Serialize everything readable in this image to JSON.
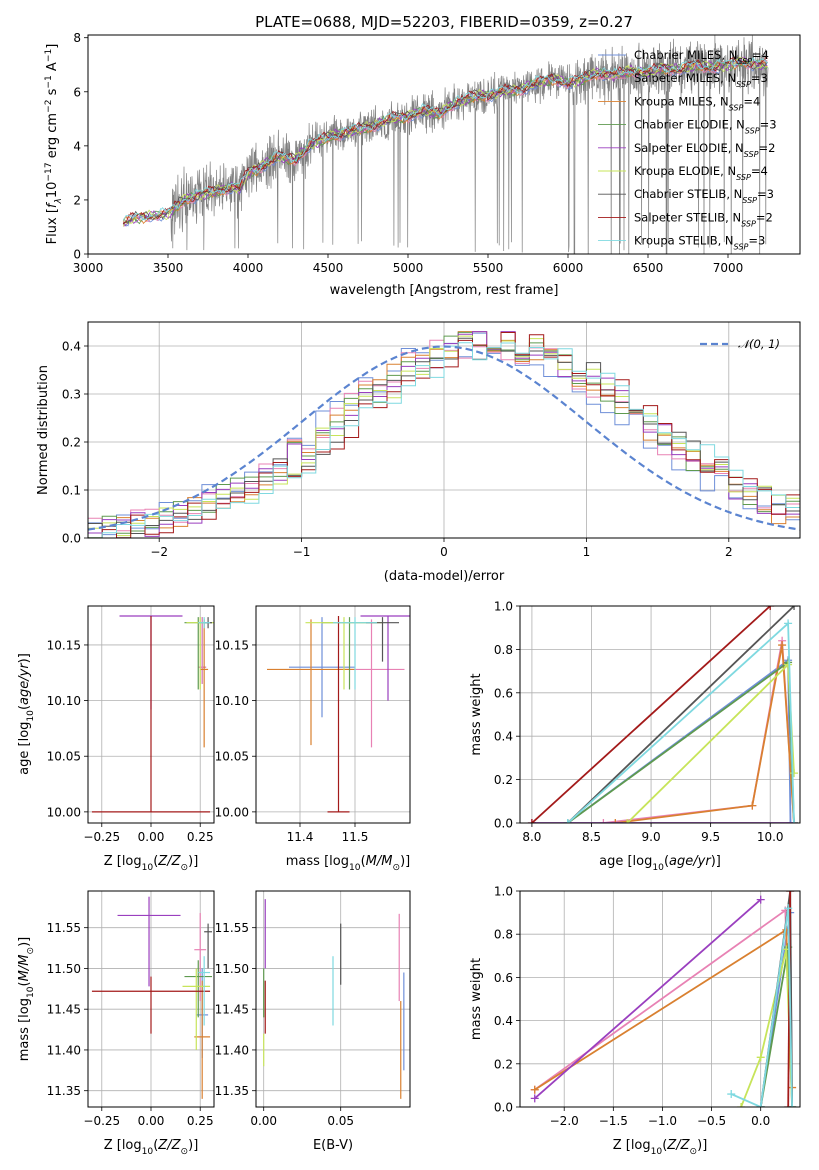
{
  "title": "PLATE=0688, MJD=52203, FIBERID=0359, z=0.27",
  "colors": {
    "Chabrier MILES": "#6f8fd8",
    "Salpeter MILES": "#e882b4",
    "Kroupa MILES": "#d98030",
    "Chabrier ELODIE": "#5f9a4f",
    "Salpeter ELODIE": "#9a3fbf",
    "Kroupa ELODIE": "#c7e45a",
    "Chabrier STELIB": "#555555",
    "Salpeter STELIB": "#a31a1a",
    "Kroupa STELIB": "#7fd9e0",
    "data": "#808080",
    "normal": "#5b84d0"
  },
  "chart_data": [
    {
      "id": "spectrum",
      "type": "line",
      "title": "PLATE=0688, MJD=52203, FIBERID=0359, z=0.27",
      "xlabel": "wavelength [Angstrom, rest frame]",
      "ylabel": "Flux [f_λ 10^-17 erg cm^-2 s^-1 A^-1]",
      "xlim": [
        3000,
        7450
      ],
      "ylim": [
        0,
        8.1
      ],
      "xticks": [
        3000,
        3500,
        4000,
        4500,
        5000,
        5500,
        6000,
        6500,
        7000
      ],
      "yticks": [
        0,
        2,
        4,
        6,
        8
      ],
      "legend_position": "top-right",
      "legend": [
        {
          "name": "Chabrier MILES",
          "nssp": "4"
        },
        {
          "name": "Salpeter MILES",
          "nssp": "3"
        },
        {
          "name": "Kroupa MILES",
          "nssp": "4"
        },
        {
          "name": "Chabrier ELODIE",
          "nssp": "3"
        },
        {
          "name": "Salpeter ELODIE",
          "nssp": "2"
        },
        {
          "name": "Kroupa ELODIE",
          "nssp": "4"
        },
        {
          "name": "Chabrier STELIB",
          "nssp": "3"
        },
        {
          "name": "Salpeter STELIB",
          "nssp": "2"
        },
        {
          "name": "Kroupa STELIB",
          "nssp": "3"
        }
      ],
      "continuum": [
        [
          3220,
          1.15
        ],
        [
          3300,
          1.35
        ],
        [
          3400,
          1.4
        ],
        [
          3500,
          1.5
        ],
        [
          3600,
          2.0
        ],
        [
          3700,
          2.2
        ],
        [
          3800,
          2.3
        ],
        [
          3900,
          2.5
        ],
        [
          3950,
          2.4
        ],
        [
          4000,
          3.0
        ],
        [
          4100,
          3.3
        ],
        [
          4200,
          3.6
        ],
        [
          4300,
          3.5
        ],
        [
          4400,
          4.1
        ],
        [
          4500,
          4.3
        ],
        [
          4600,
          4.5
        ],
        [
          4700,
          4.6
        ],
        [
          4800,
          4.8
        ],
        [
          4900,
          5.0
        ],
        [
          5000,
          5.1
        ],
        [
          5100,
          5.3
        ],
        [
          5200,
          5.2
        ],
        [
          5300,
          5.6
        ],
        [
          5400,
          5.8
        ],
        [
          5500,
          5.9
        ],
        [
          5600,
          6.0
        ],
        [
          5700,
          6.1
        ],
        [
          5800,
          6.3
        ],
        [
          5900,
          6.5
        ],
        [
          6000,
          6.3
        ],
        [
          6100,
          6.5
        ],
        [
          6200,
          6.7
        ],
        [
          6300,
          6.6
        ],
        [
          6400,
          6.8
        ],
        [
          6500,
          6.7
        ],
        [
          6600,
          6.9
        ],
        [
          6700,
          6.8
        ],
        [
          6800,
          7.0
        ],
        [
          6900,
          6.9
        ],
        [
          7000,
          7.0
        ],
        [
          7100,
          7.1
        ],
        [
          7200,
          7.0
        ],
        [
          7250,
          7.0
        ]
      ]
    },
    {
      "id": "residuals",
      "type": "histogram",
      "xlabel": "(data-model)/error",
      "ylabel": "Normed distribution",
      "xlim": [
        -2.5,
        2.5
      ],
      "ylim": [
        0,
        0.45
      ],
      "xticks": [
        -2,
        -1,
        0,
        1,
        2
      ],
      "yticks": [
        0.0,
        0.1,
        0.2,
        0.3,
        0.4
      ],
      "legend": "𝒩(0, 1)",
      "legend_position": "top-right",
      "bin_width": 0.1,
      "model_mean": 0.35,
      "model_sigma": 1.05
    },
    {
      "id": "age-vs-Z",
      "type": "errorbar",
      "xlabel": "Z [log10(Z/Z⊙)]",
      "ylabel": "age [log10(age/yr)]",
      "xlim": [
        -0.32,
        0.32
      ],
      "ylim": [
        9.99,
        10.185
      ],
      "xticks": [
        -0.25,
        0.0,
        0.25
      ],
      "yticks": [
        10.0,
        10.05,
        10.1,
        10.15
      ],
      "points": [
        {
          "model": "Chabrier MILES",
          "x": 0.26,
          "xerr": 0.02,
          "y": 10.13,
          "ylo": 10.115,
          "yhi": 10.175
        },
        {
          "model": "Salpeter MILES",
          "x": 0.26,
          "xerr": 0.02,
          "y": 10.13,
          "ylo": 10.115,
          "yhi": 10.175
        },
        {
          "model": "Kroupa MILES",
          "x": 0.27,
          "xerr": 0.02,
          "y": 10.128,
          "ylo": 10.058,
          "yhi": 10.173
        },
        {
          "model": "Chabrier ELODIE",
          "x": 0.24,
          "xerr": 0.07,
          "y": 10.17,
          "ylo": 10.11,
          "yhi": 10.175
        },
        {
          "model": "Salpeter ELODIE",
          "x": 0.0,
          "xerr": 0.16,
          "y": 10.176,
          "ylo": 10.092,
          "yhi": 10.176
        },
        {
          "model": "Kroupa ELODIE",
          "x": 0.25,
          "xerr": 0.07,
          "y": 10.17,
          "ylo": 10.11,
          "yhi": 10.175
        },
        {
          "model": "Chabrier STELIB",
          "x": 0.29,
          "xerr": 0.02,
          "y": 10.17,
          "ylo": 10.165,
          "yhi": 10.175
        },
        {
          "model": "Salpeter STELIB",
          "x": 0.0,
          "xerr": 0.3,
          "y": 10.0,
          "ylo": 10.0,
          "yhi": 10.176
        },
        {
          "model": "Kroupa STELIB",
          "x": 0.27,
          "xerr": 0.03,
          "y": 10.17,
          "ylo": 10.165,
          "yhi": 10.175
        }
      ]
    },
    {
      "id": "age-vs-mass",
      "type": "errorbar",
      "xlabel": "mass [log10(M/M⊙)]",
      "xlim": [
        11.32,
        11.6
      ],
      "ylim": [
        9.99,
        10.185
      ],
      "xticks": [
        11.4,
        11.5
      ],
      "yticks": [
        10.0,
        10.05,
        10.1,
        10.15
      ],
      "points": [
        {
          "model": "Chabrier MILES",
          "x": 11.44,
          "xerr": 0.06,
          "y": 10.13,
          "ylo": 10.085,
          "yhi": 10.175
        },
        {
          "model": "Salpeter MILES",
          "x": 11.53,
          "xerr": 0.06,
          "y": 10.128,
          "ylo": 10.058,
          "yhi": 10.173
        },
        {
          "model": "Kroupa MILES",
          "x": 11.42,
          "xerr": 0.08,
          "y": 10.128,
          "ylo": 10.06,
          "yhi": 10.173
        },
        {
          "model": "Chabrier ELODIE",
          "x": 11.49,
          "xerr": 0.05,
          "y": 10.17,
          "ylo": 10.11,
          "yhi": 10.175
        },
        {
          "model": "Salpeter ELODIE",
          "x": 11.56,
          "xerr": 0.05,
          "y": 10.176,
          "ylo": 10.1,
          "yhi": 10.176
        },
        {
          "model": "Kroupa ELODIE",
          "x": 11.48,
          "xerr": 0.07,
          "y": 10.17,
          "ylo": 10.11,
          "yhi": 10.175
        },
        {
          "model": "Chabrier STELIB",
          "x": 11.55,
          "xerr": 0.03,
          "y": 10.17,
          "ylo": 10.135,
          "yhi": 10.175
        },
        {
          "model": "Salpeter STELIB",
          "x": 11.47,
          "xerr": 0.02,
          "y": 10.0,
          "ylo": 10.0,
          "yhi": 10.176
        },
        {
          "model": "Kroupa STELIB",
          "x": 11.5,
          "xerr": 0.04,
          "y": 10.17,
          "ylo": 10.11,
          "yhi": 10.175
        }
      ]
    },
    {
      "id": "weight-vs-age",
      "type": "line",
      "xlabel": "age [log10(age/yr)]",
      "ylabel": "mass weight",
      "xlim": [
        7.9,
        10.25
      ],
      "ylim": [
        0,
        1
      ],
      "xticks": [
        8.0,
        8.5,
        9.0,
        9.5,
        10.0
      ],
      "yticks": [
        0.0,
        0.2,
        0.4,
        0.6,
        0.8,
        1.0
      ],
      "series": [
        {
          "model": "Chabrier MILES",
          "x": [
            8.3,
            10.15,
            10.17,
            10.2
          ],
          "y": [
            0.0,
            0.75,
            0.0,
            0.0
          ]
        },
        {
          "model": "Salpeter MILES",
          "x": [
            8.6,
            9.85,
            10.1,
            10.2
          ],
          "y": [
            0.0,
            0.08,
            0.84,
            0.0
          ]
        },
        {
          "model": "Kroupa MILES",
          "x": [
            8.7,
            9.85,
            10.1,
            10.2
          ],
          "y": [
            0.0,
            0.08,
            0.82,
            0.0
          ]
        },
        {
          "model": "Chabrier ELODIE",
          "x": [
            8.3,
            10.15,
            10.2
          ],
          "y": [
            0.0,
            0.74,
            0.0
          ]
        },
        {
          "model": "Salpeter ELODIE",
          "x": [
            8.0,
            10.2
          ],
          "y": [
            0.0,
            0.0
          ]
        },
        {
          "model": "Kroupa ELODIE",
          "x": [
            8.8,
            10.15,
            10.2
          ],
          "y": [
            0.0,
            0.73,
            0.23
          ]
        },
        {
          "model": "Chabrier STELIB",
          "x": [
            8.3,
            10.2
          ],
          "y": [
            0.0,
            1.0
          ]
        },
        {
          "model": "Salpeter STELIB",
          "x": [
            8.0,
            10.0
          ],
          "y": [
            0.0,
            1.0
          ]
        },
        {
          "model": "Kroupa STELIB",
          "x": [
            8.3,
            10.15,
            10.2
          ],
          "y": [
            0.0,
            0.92,
            0.0
          ]
        }
      ]
    },
    {
      "id": "mass-vs-Z",
      "type": "errorbar",
      "xlabel": "Z [log10(Z/Z⊙)]",
      "ylabel": "mass [log10(M/M⊙)]",
      "xlim": [
        -0.32,
        0.32
      ],
      "ylim": [
        11.33,
        11.595
      ],
      "xticks": [
        -0.25,
        0.0,
        0.25
      ],
      "yticks": [
        11.35,
        11.4,
        11.45,
        11.5,
        11.55
      ],
      "points": [
        {
          "model": "Chabrier MILES",
          "x": 0.26,
          "xerr": 0.03,
          "y": 11.443,
          "ylo": 11.39,
          "yhi": 11.5
        },
        {
          "model": "Salpeter MILES",
          "x": 0.25,
          "xerr": 0.03,
          "y": 11.523,
          "ylo": 11.46,
          "yhi": 11.568
        },
        {
          "model": "Kroupa MILES",
          "x": 0.26,
          "xerr": 0.04,
          "y": 11.416,
          "ylo": 11.34,
          "yhi": 11.485
        },
        {
          "model": "Chabrier ELODIE",
          "x": 0.24,
          "xerr": 0.07,
          "y": 11.49,
          "ylo": 11.44,
          "yhi": 11.51
        },
        {
          "model": "Salpeter ELODIE",
          "x": -0.01,
          "xerr": 0.16,
          "y": 11.565,
          "ylo": 11.478,
          "yhi": 11.588
        },
        {
          "model": "Kroupa ELODIE",
          "x": 0.23,
          "xerr": 0.07,
          "y": 11.478,
          "ylo": 11.4,
          "yhi": 11.5
        },
        {
          "model": "Chabrier STELIB",
          "x": 0.29,
          "xerr": 0.02,
          "y": 11.545,
          "ylo": 11.5,
          "yhi": 11.555
        },
        {
          "model": "Salpeter STELIB",
          "x": 0.0,
          "xerr": 0.3,
          "y": 11.472,
          "ylo": 11.42,
          "yhi": 11.49
        },
        {
          "model": "Kroupa STELIB",
          "x": 0.27,
          "xerr": 0.03,
          "y": 11.495,
          "ylo": 11.43,
          "yhi": 11.515
        }
      ]
    },
    {
      "id": "mass-vs-EBV",
      "type": "errorbar",
      "xlabel": "E(B-V)",
      "xlim": [
        -0.005,
        0.095
      ],
      "ylim": [
        11.33,
        11.595
      ],
      "xticks": [
        0.0,
        0.05
      ],
      "yticks": [
        11.35,
        11.4,
        11.45,
        11.5,
        11.55
      ],
      "points": [
        {
          "model": "Chabrier MILES",
          "x": 0.091,
          "xerr": 0.0,
          "y": 11.44,
          "ylo": 11.375,
          "yhi": 11.495
        },
        {
          "model": "Salpeter MILES",
          "x": 0.088,
          "xerr": 0.0,
          "y": 11.52,
          "ylo": 11.46,
          "yhi": 11.567
        },
        {
          "model": "Kroupa MILES",
          "x": 0.089,
          "xerr": 0.0,
          "y": 11.41,
          "ylo": 11.34,
          "yhi": 11.46
        },
        {
          "model": "Chabrier ELODIE",
          "x": 0.0,
          "xerr": 0.0,
          "y": 11.49,
          "ylo": 11.44,
          "yhi": 11.5
        },
        {
          "model": "Salpeter ELODIE",
          "x": 0.001,
          "xerr": 0.0,
          "y": 11.56,
          "ylo": 11.5,
          "yhi": 11.585
        },
        {
          "model": "Kroupa ELODIE",
          "x": 0.0,
          "xerr": 0.0,
          "y": 11.4,
          "ylo": 11.38,
          "yhi": 11.42
        },
        {
          "model": "Chabrier STELIB",
          "x": 0.05,
          "xerr": 0.0,
          "y": 11.53,
          "ylo": 11.48,
          "yhi": 11.555
        },
        {
          "model": "Salpeter STELIB",
          "x": 0.001,
          "xerr": 0.0,
          "y": 11.45,
          "ylo": 11.42,
          "yhi": 11.485
        },
        {
          "model": "Kroupa STELIB",
          "x": 0.045,
          "xerr": 0.0,
          "y": 11.47,
          "ylo": 11.43,
          "yhi": 11.515
        }
      ]
    },
    {
      "id": "weight-vs-Z",
      "type": "line",
      "xlabel": "Z [log10(Z/Z⊙)]",
      "ylabel": "mass weight",
      "xlim": [
        -2.45,
        0.4
      ],
      "ylim": [
        0,
        1
      ],
      "xticks": [
        -2.0,
        -1.5,
        -1.0,
        -0.5,
        0.0
      ],
      "yticks": [
        0.0,
        0.2,
        0.4,
        0.6,
        0.8,
        1.0
      ],
      "series": [
        {
          "model": "Chabrier MILES",
          "x": [
            0.0,
            0.3,
            0.32
          ],
          "y": [
            0.0,
            0.9,
            0.0
          ]
        },
        {
          "model": "Salpeter MILES",
          "x": [
            -2.3,
            0.25,
            0.32
          ],
          "y": [
            0.08,
            0.91,
            0.0
          ]
        },
        {
          "model": "Kroupa MILES",
          "x": [
            -2.3,
            0.26,
            0.32
          ],
          "y": [
            0.08,
            0.82,
            0.09
          ]
        },
        {
          "model": "Chabrier ELODIE",
          "x": [
            0.0,
            0.28,
            0.32
          ],
          "y": [
            0.0,
            0.74,
            0.0
          ]
        },
        {
          "model": "Salpeter ELODIE",
          "x": [
            -2.3,
            0.0
          ],
          "y": [
            0.04,
            0.96
          ]
        },
        {
          "model": "Kroupa ELODIE",
          "x": [
            -0.2,
            0.0,
            0.26,
            0.32
          ],
          "y": [
            0.0,
            0.23,
            0.73,
            0.0
          ]
        },
        {
          "model": "Chabrier STELIB",
          "x": [
            0.0,
            0.3,
            0.32
          ],
          "y": [
            0.0,
            1.0,
            0.0
          ]
        },
        {
          "model": "Salpeter STELIB",
          "x": [
            0.28,
            0.3
          ],
          "y": [
            0.0,
            1.0
          ]
        },
        {
          "model": "Kroupa STELIB",
          "x": [
            -0.3,
            0.0,
            0.28,
            0.32
          ],
          "y": [
            0.06,
            0.0,
            0.92,
            0.0
          ]
        }
      ]
    }
  ]
}
